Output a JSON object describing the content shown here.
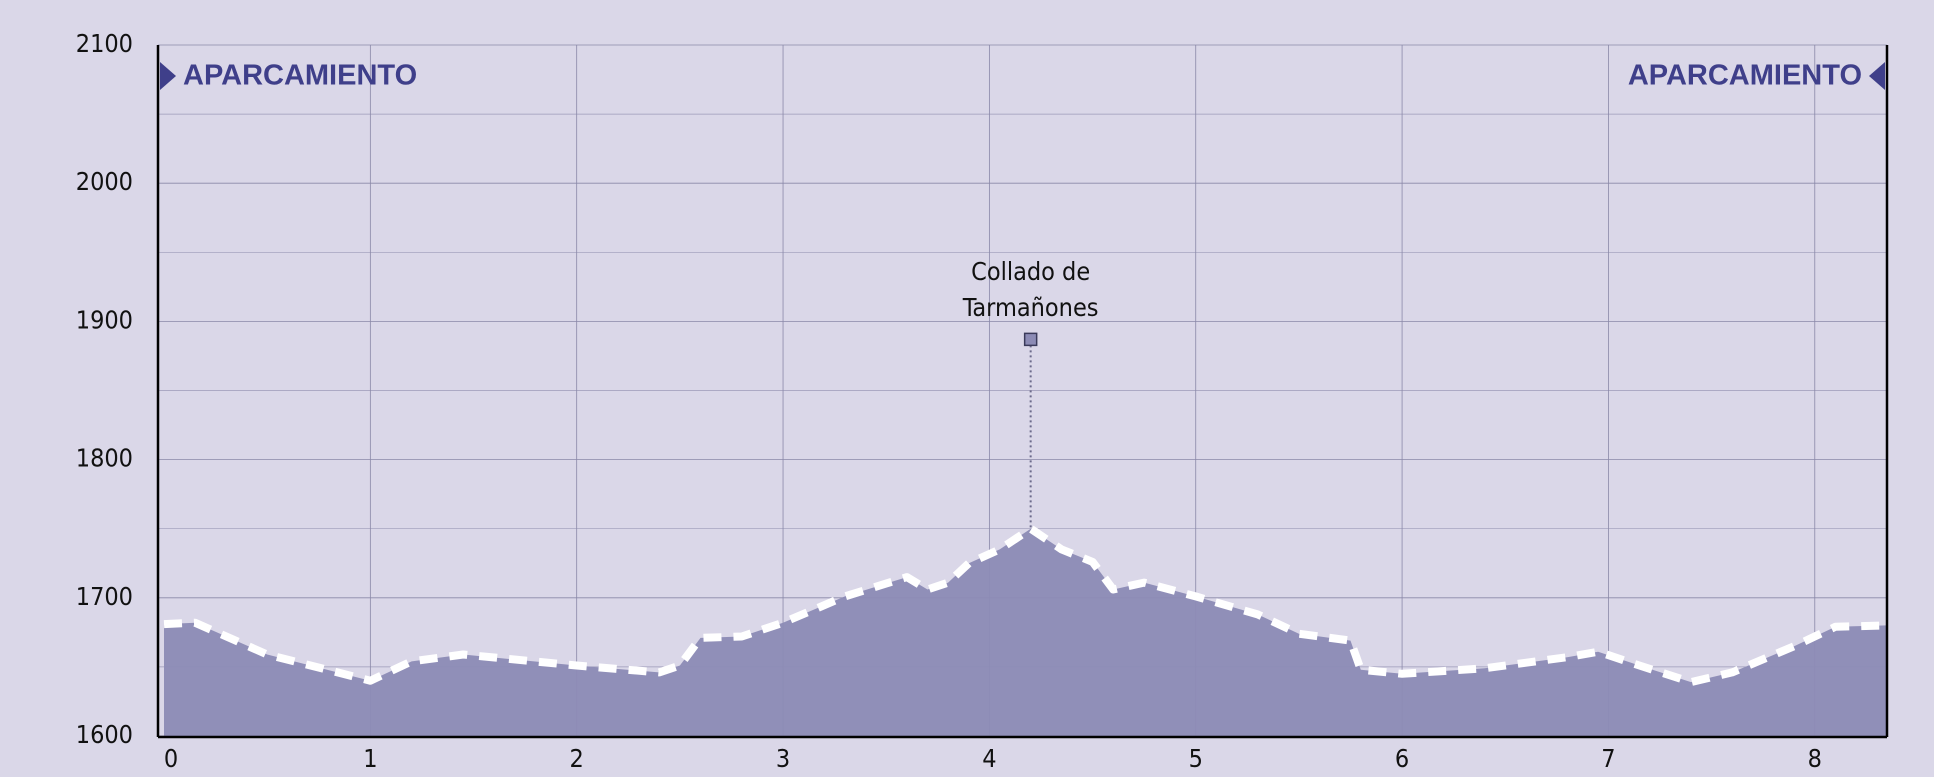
{
  "chart_data": {
    "type": "area",
    "x": [
      0,
      0.15,
      0.5,
      1.0,
      1.2,
      1.45,
      2.0,
      2.4,
      2.5,
      2.6,
      2.8,
      3.0,
      3.3,
      3.6,
      3.7,
      3.8,
      3.9,
      4.05,
      4.2,
      4.35,
      4.5,
      4.6,
      4.75,
      5.0,
      5.3,
      5.5,
      5.75,
      5.8,
      6.0,
      6.4,
      6.8,
      6.95,
      7.15,
      7.4,
      7.6,
      7.9,
      8.1,
      8.35
    ],
    "y": [
      1681,
      1682,
      1659,
      1640,
      1654,
      1659,
      1651,
      1646,
      1651,
      1671,
      1672,
      1682,
      1701,
      1715,
      1706,
      1711,
      1725,
      1735,
      1750,
      1735,
      1726,
      1706,
      1711,
      1701,
      1688,
      1674,
      1669,
      1648,
      1645,
      1649,
      1657,
      1661,
      1651,
      1639,
      1646,
      1665,
      1679,
      1680
    ],
    "fill_color": "#8c8bb5",
    "line_color": "#ffffff",
    "xlim": [
      0,
      8.35
    ],
    "xticks": [
      0,
      1,
      2,
      3,
      4,
      5,
      6,
      7,
      8
    ],
    "ylim": [
      1600,
      2100
    ],
    "yticks": [
      1600,
      1700,
      1800,
      1900,
      2000,
      2100
    ],
    "yminor": [
      1650,
      1750,
      1850,
      1950,
      2050
    ],
    "grid": true,
    "annotation": {
      "lines": [
        "Collado de",
        "Tarmañones"
      ],
      "x": 4.2,
      "y": 1887
    },
    "start_label": "APARCAMIENTO",
    "end_label": "APARCAMIENTO"
  }
}
